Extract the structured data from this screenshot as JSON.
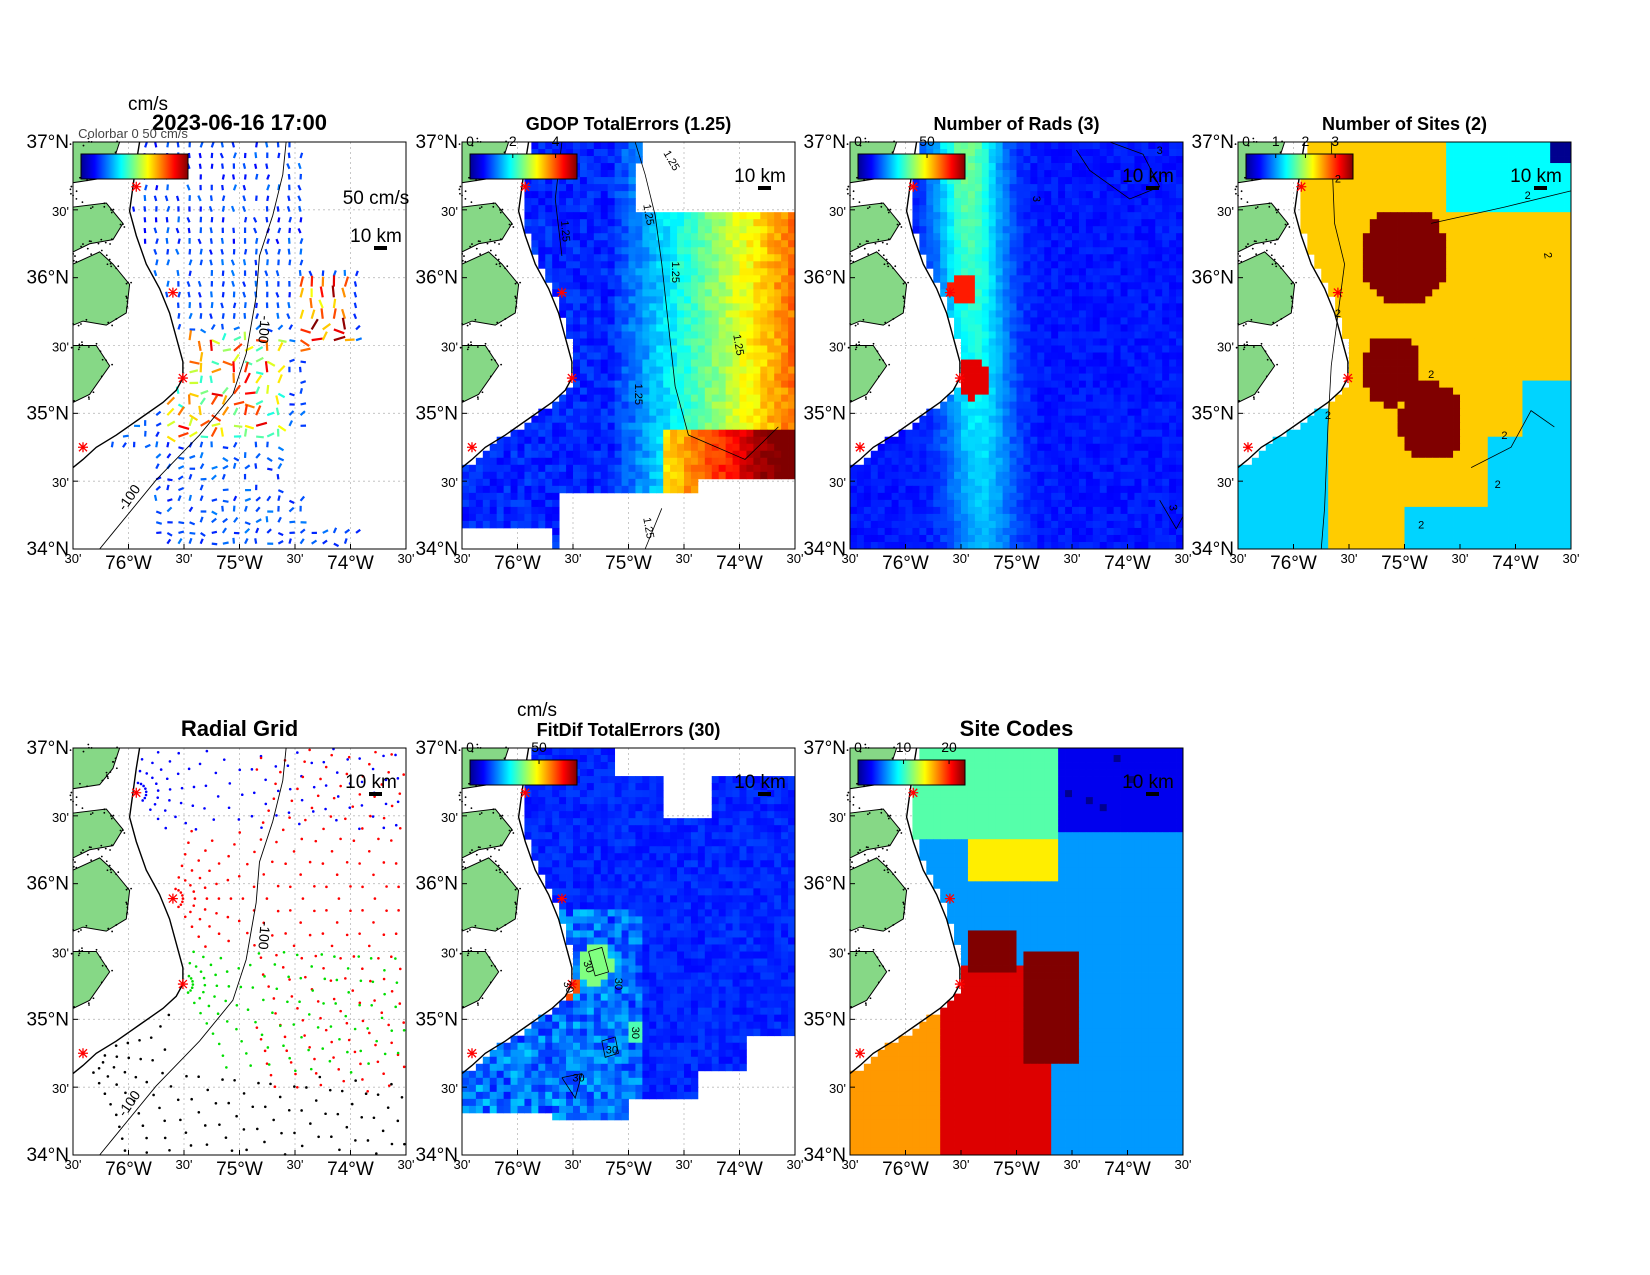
{
  "colors": {
    "land": "#86d886",
    "coast": "#000000",
    "site_marker": "#ff0000",
    "sea": "#ffffff"
  },
  "axes_common": {
    "lat_ticks": [
      "37°N",
      "30'",
      "36°N",
      "30'",
      "35°N",
      "30'",
      "34°N"
    ],
    "lon_ticks": [
      "30'",
      "76°W",
      "30'",
      "75°W",
      "30'",
      "74°W",
      "30'"
    ],
    "lat_range": [
      34,
      37
    ],
    "lon_range": [
      -76.5,
      -73.5
    ],
    "scale_bar": "10 km"
  },
  "chart_data": [
    {
      "id": "total-vectors",
      "type": "scatter",
      "title": "2023-06-16 17:00",
      "unit": "cm/s",
      "unit_overlap_text": "Colorbar 0 50 cm/s",
      "reference_vector": "50 cm/s",
      "colorbar_ticks": [],
      "depth_contour": "-100",
      "depth_contour_2": "-100",
      "field": "vectors"
    },
    {
      "id": "gdop",
      "type": "heatmap",
      "title": "GDOP TotalErrors (1.25)",
      "colorbar_ticks": [
        "0",
        "2",
        "4"
      ],
      "contour_labels": [
        "1.25",
        "1.25",
        "1.25",
        "1.25",
        "1.25",
        "1.25",
        "1.25"
      ],
      "field": "gdop"
    },
    {
      "id": "num-rads",
      "type": "heatmap",
      "title": "Number of Rads (3)",
      "colorbar_ticks": [
        "0",
        "50"
      ],
      "contour_labels": [
        "3",
        "3",
        "3"
      ],
      "field": "rads"
    },
    {
      "id": "num-sites",
      "type": "heatmap",
      "title": "Number of Sites (2)",
      "colorbar_ticks": [
        "0",
        "1",
        "2",
        "3"
      ],
      "contour_labels": [
        "2",
        "2",
        "2",
        "2",
        "2",
        "2",
        "2",
        "2",
        "2"
      ],
      "categories": [
        1,
        2,
        3
      ],
      "field": "sites"
    },
    {
      "id": "radial-grid",
      "type": "scatter",
      "title": "Radial Grid",
      "depth_contour": "-100",
      "depth_contour_2": "-100",
      "field": "radialgrid"
    },
    {
      "id": "fitdif",
      "type": "heatmap",
      "title": "FitDif TotalErrors (30)",
      "unit": "cm/s",
      "colorbar_ticks": [
        "0",
        "50"
      ],
      "contour_labels": [
        "30",
        "30",
        "30",
        "30",
        "30",
        "30"
      ],
      "field": "fitdif"
    },
    {
      "id": "site-codes",
      "type": "heatmap",
      "title": "Site Codes",
      "colorbar_ticks": [
        "0",
        "10",
        "20"
      ],
      "field": "sitecodes"
    }
  ]
}
